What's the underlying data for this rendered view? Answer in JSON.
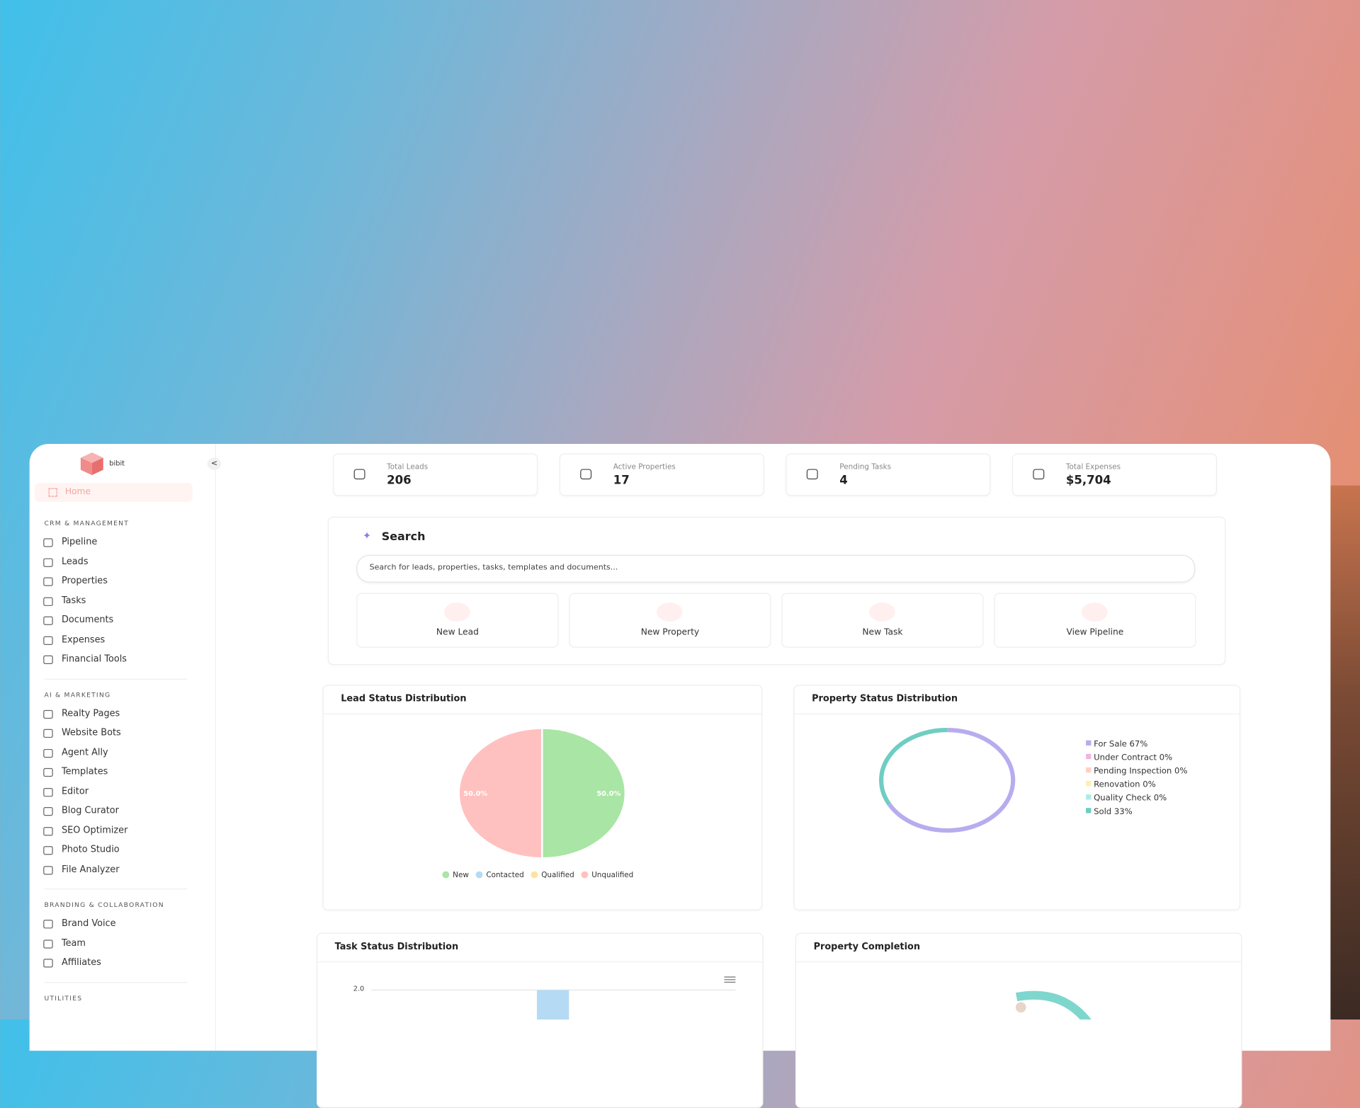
{
  "brand": "bibit",
  "sidebar": {
    "home": "Home",
    "sections": [
      {
        "title": "CRM & MANAGEMENT",
        "items": [
          "Pipeline",
          "Leads",
          "Properties",
          "Tasks",
          "Documents",
          "Expenses",
          "Financial Tools"
        ]
      },
      {
        "title": "AI & MARKETING",
        "items": [
          "Realty Pages",
          "Website Bots",
          "Agent Ally",
          "Templates",
          "Editor",
          "Blog Curator",
          "SEO Optimizer",
          "Photo Studio",
          "File Analyzer"
        ]
      },
      {
        "title": "BRANDING & COLLABORATION",
        "items": [
          "Brand Voice",
          "Team",
          "Affiliates"
        ]
      },
      {
        "title": "UTILITIES",
        "items": []
      }
    ]
  },
  "stats": [
    {
      "label": "Total Leads",
      "value": "206"
    },
    {
      "label": "Active Properties",
      "value": "17"
    },
    {
      "label": "Pending Tasks",
      "value": "4"
    },
    {
      "label": "Total Expenses",
      "value": "$5,704"
    }
  ],
  "search": {
    "title": "Search",
    "placeholder": "Search for leads, properties, tasks, templates and documents...",
    "actions": [
      "New Lead",
      "New Property",
      "New Task",
      "View Pipeline"
    ]
  },
  "lead_chart": {
    "title": "Lead Status Distribution",
    "slices": [
      {
        "name": "New",
        "value": 50,
        "value_label": "50.0%",
        "color": "#a9e5a4"
      },
      {
        "name": "Contacted",
        "value": 0,
        "color": "#b5daf3"
      },
      {
        "name": "Qualified",
        "value": 0,
        "color": "#fde3a2"
      },
      {
        "name": "Unqualified",
        "value": 50,
        "value_label": "50.0%",
        "color": "#ffc1bf"
      }
    ]
  },
  "property_chart": {
    "title": "Property Status Distribution",
    "items": [
      {
        "label": "For Sale 67%",
        "value": 67,
        "color": "#b8acee"
      },
      {
        "label": "Under Contract 0%",
        "value": 0,
        "color": "#f3b3e2"
      },
      {
        "label": "Pending Inspection 0%",
        "value": 0,
        "color": "#ffcfc7"
      },
      {
        "label": "Renovation 0%",
        "value": 0,
        "color": "#fdf0b2"
      },
      {
        "label": "Quality Check 0%",
        "value": 0,
        "color": "#afebe4"
      },
      {
        "label": "Sold 33%",
        "value": 33,
        "color": "#6fcdc2"
      }
    ]
  },
  "task_chart": {
    "title": "Task Status Distribution",
    "ylim": [
      0,
      2
    ],
    "yticks": [
      {
        "value": 2,
        "label": "2.0"
      }
    ],
    "values": [
      2
    ],
    "color": "#b5daf3"
  },
  "completion_chart": {
    "title": "Property Completion"
  }
}
